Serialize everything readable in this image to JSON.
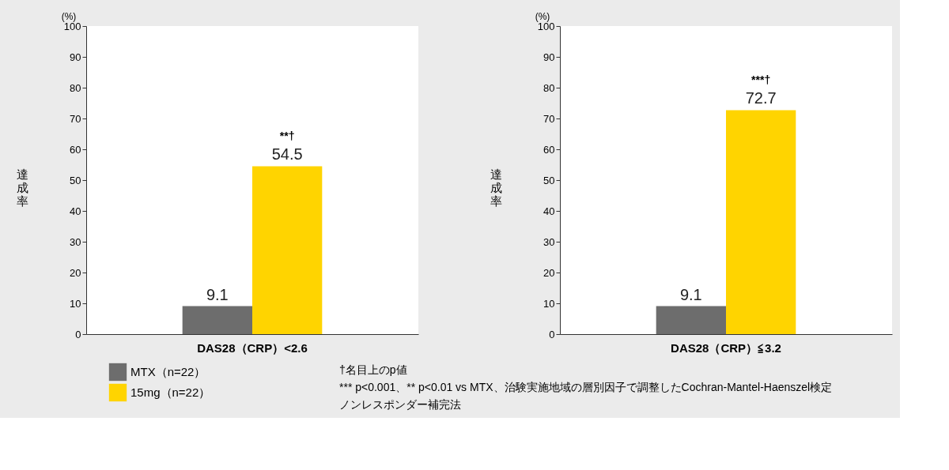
{
  "chart_data": [
    {
      "type": "bar",
      "categories": [
        "DAS28（CRP）<2.6"
      ],
      "ylabel": "達成率",
      "ylim": [
        0,
        100
      ],
      "yticks": [
        0,
        10,
        20,
        30,
        40,
        50,
        60,
        70,
        80,
        90,
        100
      ],
      "data_labels": true,
      "legend": "bottom left",
      "series": [
        {
          "name": "MTX（n=22）",
          "color": "#6d6d6d",
          "values": [
            9.1
          ]
        },
        {
          "name": "15mg（n=22）",
          "color": "#ffd400",
          "values": [
            54.5
          ]
        }
      ],
      "annotations": [
        "(%)",
        "**†"
      ]
    },
    {
      "type": "bar",
      "categories": [
        "DAS28（CRP）≦3.2"
      ],
      "ylabel": "達成率",
      "ylim": [
        0,
        100
      ],
      "yticks": [
        0,
        10,
        20,
        30,
        40,
        50,
        60,
        70,
        80,
        90,
        100
      ],
      "data_labels": true,
      "series": [
        {
          "color": "#6d6d6d",
          "values": [
            9.1
          ]
        },
        {
          "color": "#ffd400",
          "values": [
            72.7
          ]
        }
      ],
      "annotations": [
        "(%)",
        "***†",
        "†名目上のp値",
        "*** p<0.001、** p<0.01 vs MTX、治験実施地域の層別因子で調整したCochran-Mantel-Haenszel検定",
        "ノンレスポンダー補完法"
      ]
    }
  ]
}
